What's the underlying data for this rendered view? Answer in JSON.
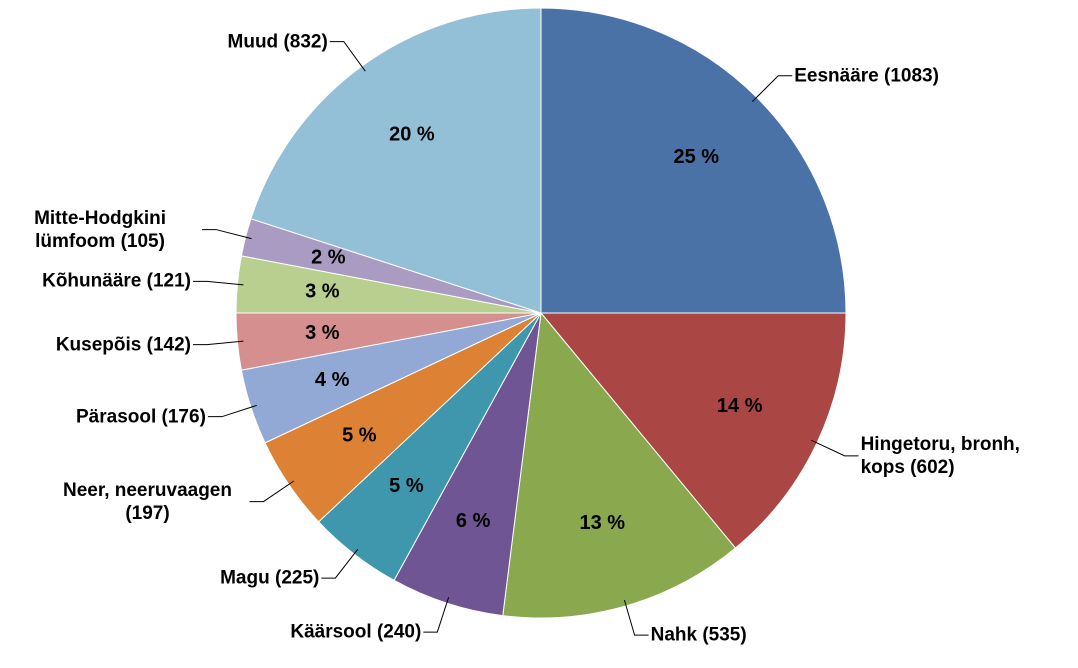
{
  "chart_data": {
    "type": "pie",
    "categories": [
      "Eesnääre (1083)",
      "Hingetoru, bronh, kops (602)",
      "Nahk (535)",
      "Käärsool (240)",
      "Magu (225)",
      "Neer, neeruvaagen (197)",
      "Pärasool (176)",
      "Kusepõis (142)",
      "Kõhunääre (121)",
      "Mitte-Hodgkini lümfoom (105)",
      "Muud (832)"
    ],
    "values": [
      25,
      14,
      13,
      6,
      5,
      5,
      4,
      3,
      3,
      2,
      20
    ],
    "value_labels": [
      "25 %",
      "14 %",
      "13 %",
      "6 %",
      "5 %",
      "5 %",
      "4 %",
      "3 %",
      "3 %",
      "2 %",
      "20 %"
    ],
    "colors": [
      "#4a72a6",
      "#aa4644",
      "#8aa84e",
      "#6f5594",
      "#3e97ad",
      "#dd8235",
      "#91a9d4",
      "#d48f8e",
      "#b8cf8f",
      "#a99bc2",
      "#93c0d6"
    ]
  }
}
